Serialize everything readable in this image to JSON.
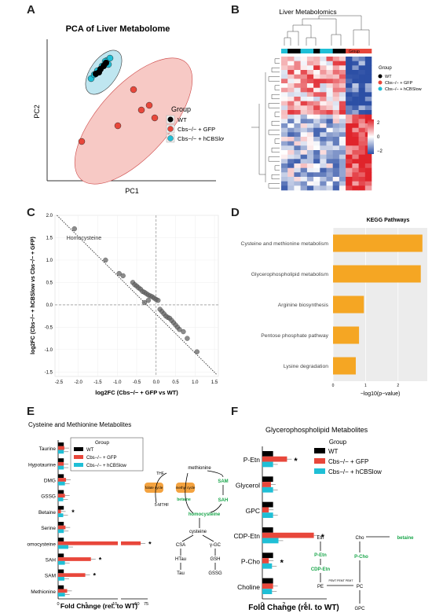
{
  "panel_labels": {
    "A": "A",
    "B": "B",
    "C": "C",
    "D": "D",
    "E": "E",
    "F": "F"
  },
  "colors": {
    "wt": "#000000",
    "gfp": "#e8473b",
    "hcbs": "#1fbfd6",
    "ellipse_red": "#f7c9c5",
    "ellipse_blue": "#bfe6f0",
    "bar_orange": "#f5a623",
    "green": "#1aa64b",
    "heat_hi": "#e0242b",
    "heat_lo": "#2c4fa5",
    "orange_box": "#f4a340"
  },
  "panelA": {
    "title": "PCA of Liver Metabolome",
    "xlabel": "PC1",
    "ylabel": "PC2",
    "legend_title": "Group",
    "legend": [
      "WT",
      "Cbs−/− + GFP",
      "Cbs−/− + hCBSlow"
    ]
  },
  "panelB": {
    "title": "Liver Metabolomics",
    "group_label": "Group",
    "legend_title": "Group",
    "legend": [
      "WT",
      "Cbs−/− + GFP",
      "Cbs−/− + hCBSlow"
    ],
    "scale_ticks": [
      "2",
      "0",
      "−2"
    ]
  },
  "panelC": {
    "xlabel": "log2FC (Cbs−/− + GFP vs WT)",
    "ylabel": "log2FC (Cbs−/− + hCBSlow vs Cbs−/− + GFP)",
    "annotation": "Homocysteine",
    "x_ticks": [
      "-2.5",
      "-2.0",
      "-1.5",
      "-1.0",
      "-0.5",
      "0.0",
      "0.5",
      "1.0",
      "1.5"
    ],
    "y_ticks": [
      "2.0",
      "1.5",
      "1.0",
      "0.5",
      "0.0",
      "-0.5",
      "-1.0",
      "-1.5"
    ]
  },
  "chart_data": [
    {
      "type": "scatter",
      "panel": "C",
      "xlabel": "log2FC (Cbs−/− + GFP vs WT)",
      "ylabel": "log2FC (Cbs−/− + hCBSlow vs Cbs−/− + GFP)",
      "xlim": [
        -2.6,
        1.6
      ],
      "ylim": [
        -1.6,
        2.0
      ],
      "points": [
        {
          "x": -2.1,
          "y": 1.7
        },
        {
          "x": -1.3,
          "y": 1.0
        },
        {
          "x": -0.95,
          "y": 0.7
        },
        {
          "x": -0.85,
          "y": 0.65
        },
        {
          "x": -0.6,
          "y": 0.5
        },
        {
          "x": -0.55,
          "y": 0.45
        },
        {
          "x": -0.5,
          "y": 0.42
        },
        {
          "x": -0.45,
          "y": 0.38
        },
        {
          "x": -0.4,
          "y": 0.35
        },
        {
          "x": -0.35,
          "y": 0.3
        },
        {
          "x": -0.3,
          "y": 0.28
        },
        {
          "x": -0.25,
          "y": 0.25
        },
        {
          "x": -0.2,
          "y": 0.22
        },
        {
          "x": -0.15,
          "y": 0.2
        },
        {
          "x": -0.1,
          "y": 0.18
        },
        {
          "x": -0.05,
          "y": 0.15
        },
        {
          "x": 0.0,
          "y": 0.12
        },
        {
          "x": 0.05,
          "y": 0.1
        },
        {
          "x": -0.3,
          "y": 0.05
        },
        {
          "x": -0.2,
          "y": 0.1
        },
        {
          "x": 0.1,
          "y": -0.1
        },
        {
          "x": 0.15,
          "y": -0.15
        },
        {
          "x": 0.2,
          "y": -0.2
        },
        {
          "x": 0.25,
          "y": -0.25
        },
        {
          "x": 0.3,
          "y": -0.28
        },
        {
          "x": 0.35,
          "y": -0.3
        },
        {
          "x": 0.4,
          "y": -0.35
        },
        {
          "x": 0.45,
          "y": -0.4
        },
        {
          "x": 0.5,
          "y": -0.45
        },
        {
          "x": 0.55,
          "y": -0.5
        },
        {
          "x": 0.6,
          "y": -0.55
        },
        {
          "x": 0.7,
          "y": -0.6
        },
        {
          "x": 0.8,
          "y": -0.75
        },
        {
          "x": 1.05,
          "y": -1.05
        }
      ],
      "annotations": [
        {
          "text": "Homocysteine",
          "x": -2.1,
          "y": 1.7
        }
      ]
    },
    {
      "type": "bar",
      "panel": "D",
      "title": "KEGG Pathways",
      "xlabel": "−log10(p−value)",
      "categories": [
        "Cysteine and methionine metabolism",
        "Glycerophospholipid metabolism",
        "Arginine biosynthesis",
        "Pentose phosphate pathway",
        "Lysine degradation"
      ],
      "values": [
        2.75,
        2.7,
        0.95,
        0.8,
        0.7
      ],
      "x_ticks": [
        "0",
        "1",
        "2"
      ],
      "xlim": [
        0,
        2.9
      ]
    },
    {
      "type": "bar",
      "panel": "E",
      "title": "Cysteine and Methionine Metabolites",
      "xlabel": "Fold Change (rel. to WT)",
      "categories": [
        "Taurine",
        "Hypotaurine",
        "DMG",
        "GSSG",
        "Betaine",
        "Serine",
        "Homocysteine",
        "SAH",
        "SAM",
        "Methionine"
      ],
      "series": [
        {
          "name": "WT",
          "values": [
            1,
            1,
            1,
            1,
            1,
            1,
            1,
            1,
            1,
            1
          ]
        },
        {
          "name": "Cbs−/− + GFP",
          "values": [
            1.1,
            1.0,
            1.4,
            1.2,
            0.5,
            1.3,
            60,
            5.8,
            4.8,
            1.6
          ]
        },
        {
          "name": "Cbs−/− + hCBSlow",
          "values": [
            1.0,
            1.0,
            1.2,
            0.9,
            0.9,
            1.0,
            1.8,
            1.2,
            1.1,
            1.2
          ]
        }
      ],
      "x_ticks": [
        "0",
        "5",
        "10",
        "50",
        "75"
      ],
      "significant": [
        "Betaine",
        "Homocysteine",
        "SAH",
        "SAM"
      ]
    },
    {
      "type": "bar",
      "panel": "F",
      "title": "Glycerophospholipid Metabolites",
      "xlabel": "Fold Change (rel. to WT)",
      "categories": [
        "P-Etn",
        "Glycerol",
        "GPC",
        "CDP-Etn",
        "P-Cho",
        "Choline"
      ],
      "series": [
        {
          "name": "WT",
          "values": [
            1,
            1,
            1,
            1,
            1,
            1
          ]
        },
        {
          "name": "Cbs−/− + GFP",
          "values": [
            2.3,
            0.8,
            0.6,
            4.8,
            0.6,
            1.0
          ]
        },
        {
          "name": "Cbs−/− + hCBSlow",
          "values": [
            1.0,
            1.0,
            1.0,
            1.5,
            0.9,
            0.9
          ]
        }
      ],
      "x_ticks": [
        "0",
        "2",
        "4"
      ],
      "xlim": [
        0,
        6
      ],
      "significant": [
        "P-Etn",
        "CDP-Etn",
        "P-Cho"
      ]
    }
  ],
  "panelE": {
    "legend_title": "Group",
    "legend": [
      "WT",
      "Cbs−/− + GFP",
      "Cbs−/− + hCBSlow"
    ],
    "pathway": {
      "methionine": "methionine",
      "SAM": "SAM",
      "SAH": "SAH",
      "homocysteine": "homocysteine",
      "betaine": "betaine",
      "folate": "folate cycle",
      "methyl": "methyl cycle",
      "THF": "THF",
      "MTHF": "5-MTHF",
      "cysteine": "cysteine",
      "CSA": "CSA",
      "HTau": "HTau",
      "Tau": "Tau",
      "GC": "γ-GC",
      "GSH": "GSH",
      "GSSG": "GSSG"
    }
  },
  "panelF": {
    "legend_title": "Group",
    "legend": [
      "WT",
      "Cbs−/− + GFP",
      "Cbs−/− + hCBSlow"
    ],
    "pathway": {
      "Etn": "Etn",
      "PEtn": "P-Etn",
      "CDPEtn": "CDP-Etn",
      "PE": "PE",
      "Cho": "Cho",
      "betaine": "betaine",
      "PCho": "P-Cho",
      "PC": "PC",
      "GPC": "GPC",
      "enz": "PEMT PEMT PEMT"
    }
  }
}
